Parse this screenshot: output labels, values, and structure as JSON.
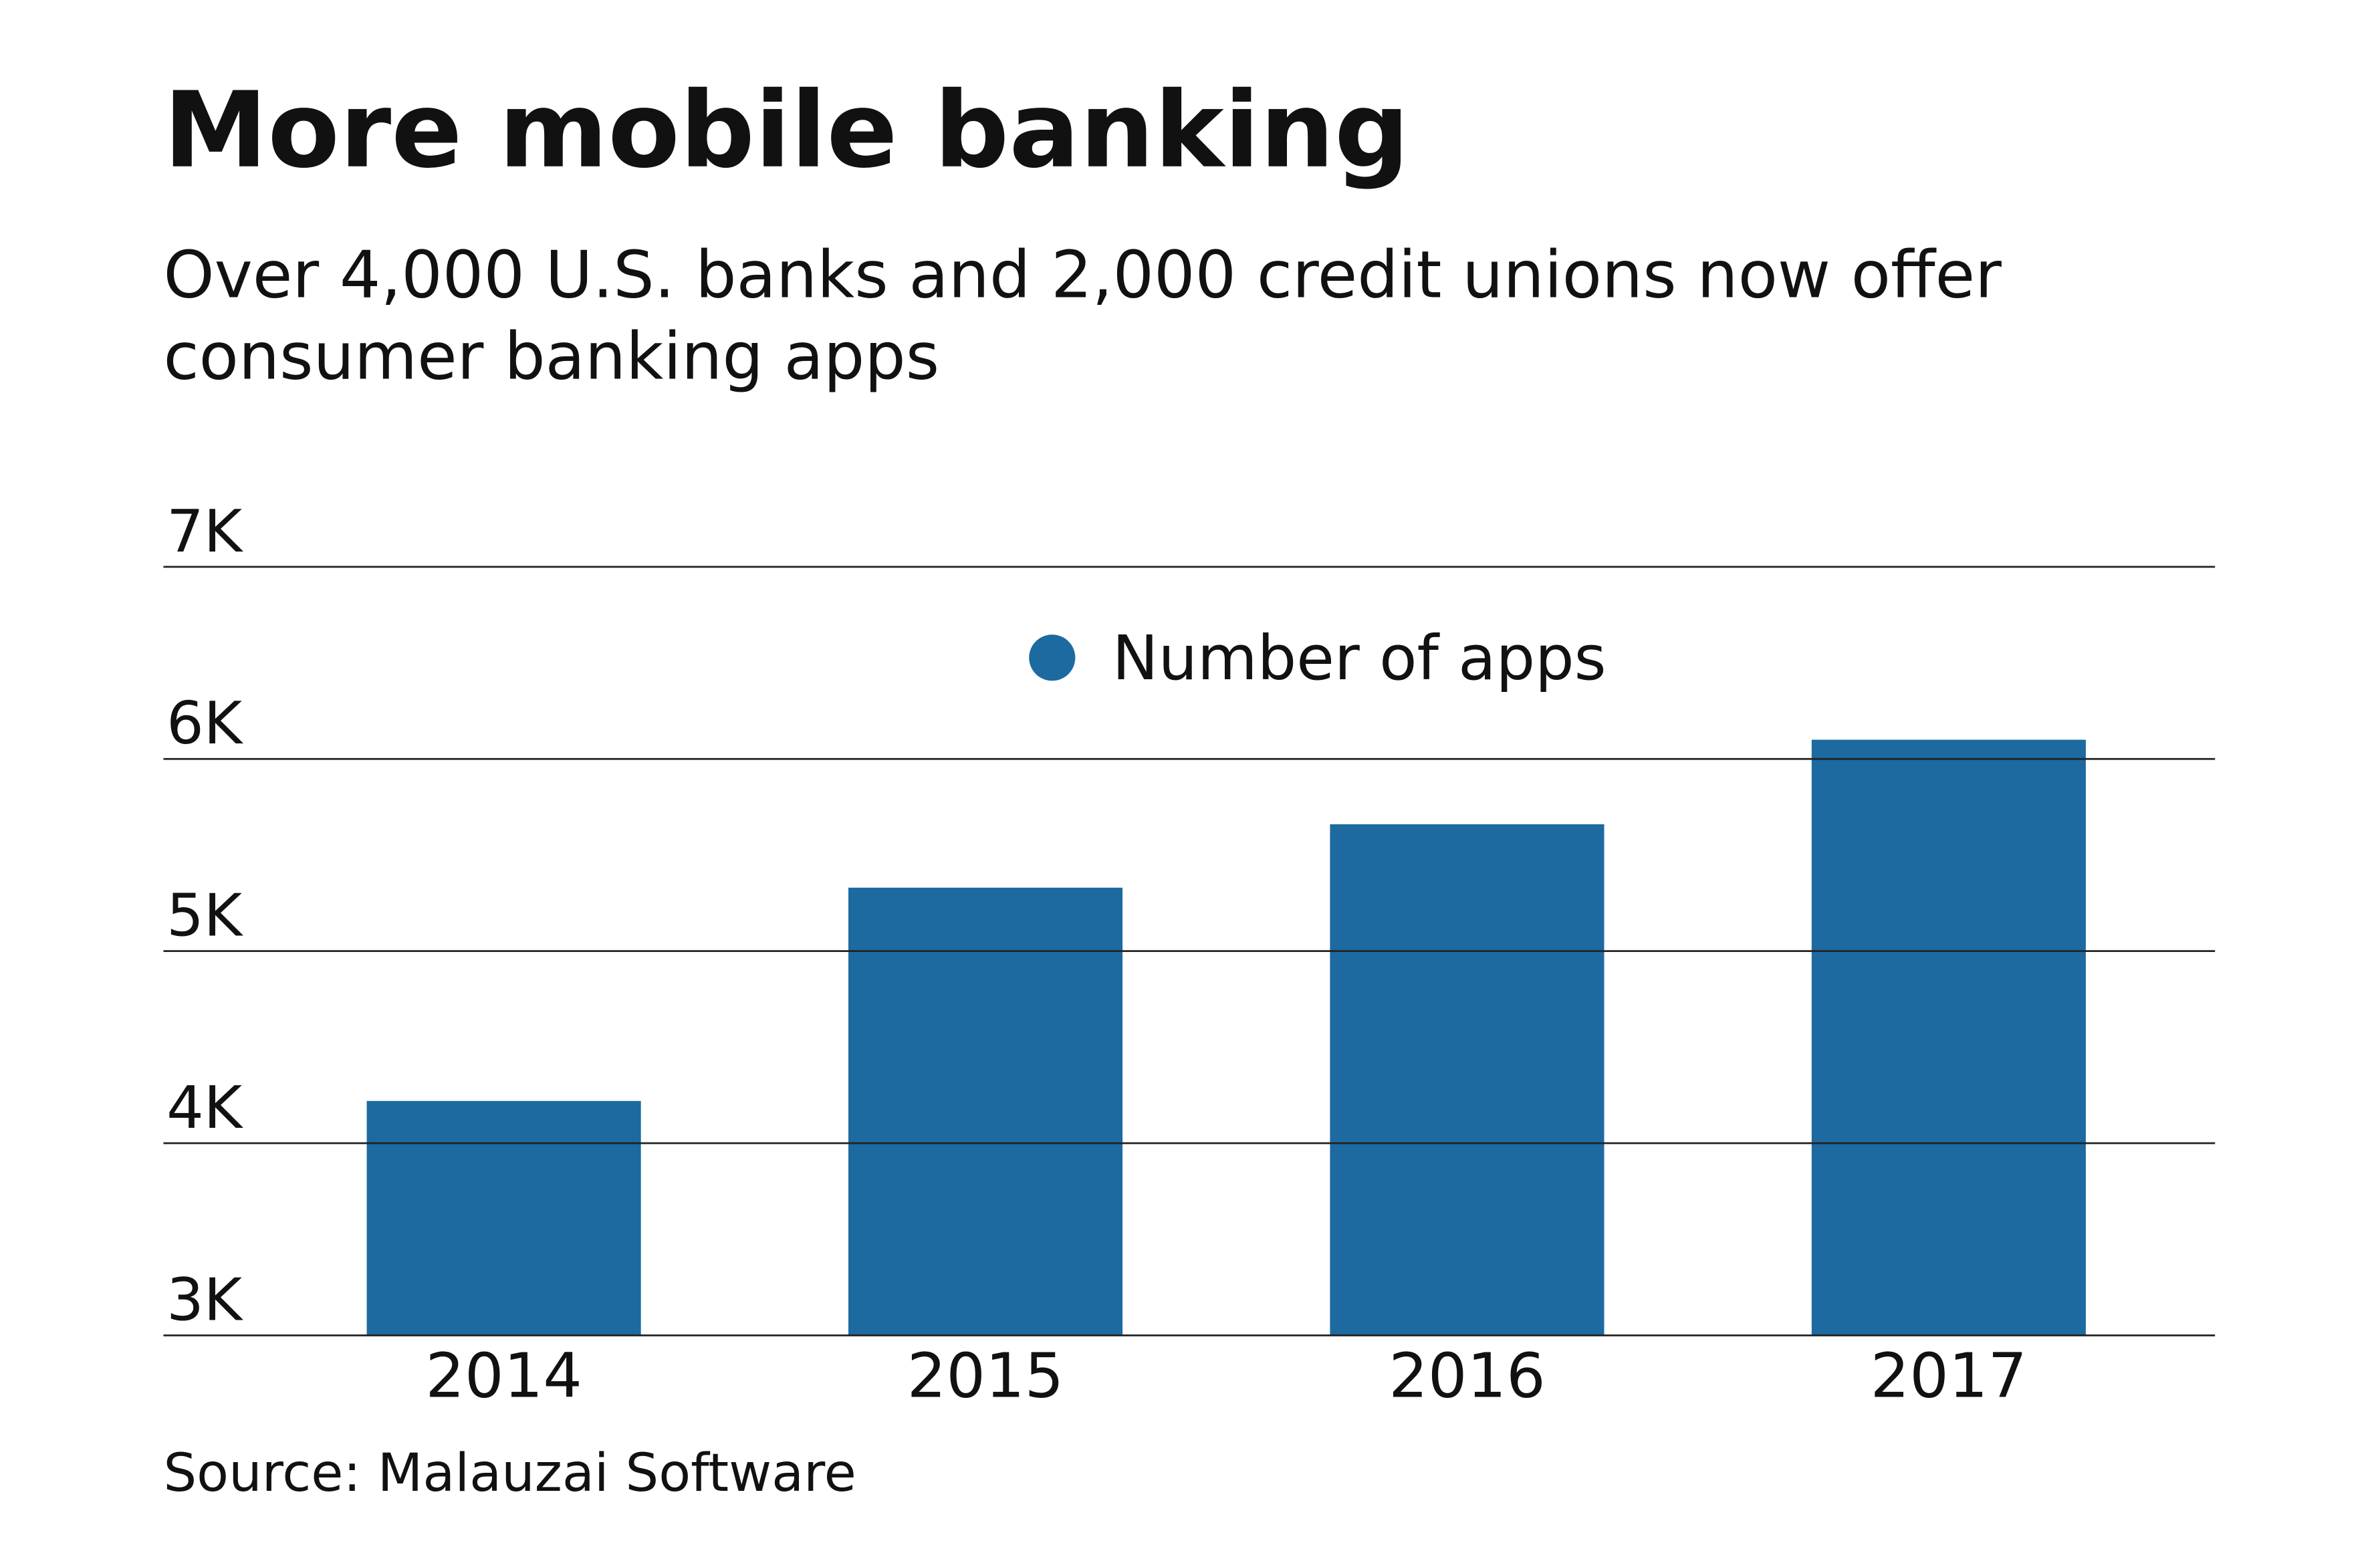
{
  "chart_data": {
    "type": "bar",
    "title": "More mobile banking",
    "subtitle": [
      "Over 4,000 U.S. banks and 2,000 credit unions now offer",
      "consumer banking apps"
    ],
    "source": "Source: Malauzai Software",
    "categories": [
      "2014",
      "2015",
      "2016",
      "2017"
    ],
    "series": [
      {
        "name": "Number of apps",
        "color": "#1c6aa0",
        "values": [
          4220,
          5330,
          5660,
          6100
        ]
      }
    ],
    "ylim": [
      3000,
      7000
    ],
    "yticks": [
      {
        "value": 3000,
        "label": "3K"
      },
      {
        "value": 4000,
        "label": "4K"
      },
      {
        "value": 5000,
        "label": "5K"
      },
      {
        "value": 6000,
        "label": "6K"
      },
      {
        "value": 7000,
        "label": "7K"
      }
    ],
    "grid": true,
    "legend": "top"
  }
}
